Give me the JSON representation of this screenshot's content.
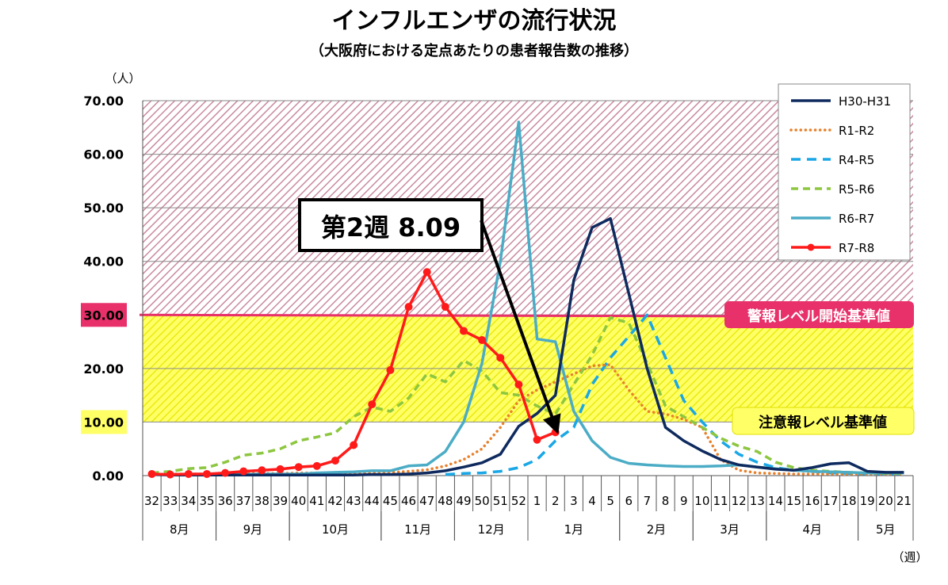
{
  "chart_data": {
    "type": "line",
    "title": "インフルエンザの流行状況",
    "subtitle": "（大阪府における定点あたりの患者報告数の推移）",
    "ylabel": "（人）",
    "xlabel": "（週）",
    "ylim": [
      0,
      70
    ],
    "yticks": [
      "0.00",
      "10.00",
      "20.00",
      "30.00",
      "40.00",
      "50.00",
      "60.00",
      "70.00"
    ],
    "categories": [
      "32",
      "33",
      "34",
      "35",
      "36",
      "37",
      "38",
      "39",
      "40",
      "41",
      "42",
      "43",
      "44",
      "45",
      "46",
      "47",
      "48",
      "49",
      "50",
      "51",
      "52",
      "1",
      "2",
      "3",
      "4",
      "5",
      "6",
      "7",
      "8",
      "9",
      "10",
      "11",
      "12",
      "13",
      "14",
      "15",
      "16",
      "17",
      "18",
      "19",
      "20",
      "21"
    ],
    "months": [
      {
        "label": "8月",
        "start": 0,
        "end": 4
      },
      {
        "label": "9月",
        "start": 4,
        "end": 8
      },
      {
        "label": "10月",
        "start": 8,
        "end": 13
      },
      {
        "label": "11月",
        "start": 13,
        "end": 17
      },
      {
        "label": "12月",
        "start": 17,
        "end": 21
      },
      {
        "label": "1月",
        "start": 21,
        "end": 26
      },
      {
        "label": "2月",
        "start": 26,
        "end": 30
      },
      {
        "label": "3月",
        "start": 30,
        "end": 34
      },
      {
        "label": "4月",
        "start": 34,
        "end": 39
      },
      {
        "label": "5月",
        "start": 39,
        "end": 42
      }
    ],
    "thresholds": [
      {
        "name": "警報レベル開始基準値",
        "value": 30,
        "label": "警報レベル開始基準値",
        "color": "#e8306a"
      },
      {
        "name": "注意報レベル基準値",
        "value": 10,
        "label": "注意報レベル基準値",
        "color": "#f5f53a"
      }
    ],
    "series": [
      {
        "name": "H30-H31",
        "color": "#0e2a5e",
        "style": "solid",
        "marker": false,
        "values": [
          0.2,
          0.1,
          0.1,
          0.1,
          0.1,
          0.1,
          0.1,
          0.1,
          0.1,
          0.1,
          0.1,
          0.1,
          0.2,
          0.2,
          0.3,
          0.5,
          0.9,
          1.6,
          2.4,
          4.0,
          9.2,
          11.6,
          15.0,
          36.5,
          46.3,
          48.0,
          34.0,
          20.0,
          9.0,
          6.5,
          4.6,
          3.0,
          2.0,
          1.6,
          1.2,
          1.0,
          1.5,
          2.2,
          2.4,
          0.8,
          0.6,
          0.6
        ]
      },
      {
        "name": "R1-R2",
        "color": "#e8802b",
        "style": "dotted",
        "marker": false,
        "values": [
          0.2,
          0.3,
          0.3,
          0.3,
          0.3,
          0.4,
          0.4,
          0.4,
          0.5,
          0.5,
          0.4,
          0.4,
          0.5,
          0.6,
          0.8,
          1.1,
          1.8,
          3.0,
          5.0,
          9.0,
          14.0,
          16.0,
          17.5,
          19.0,
          20.5,
          20.7,
          16.0,
          12.0,
          11.5,
          10.5,
          9.0,
          3.0,
          1.0,
          0.5,
          0.4,
          0.3,
          0.3,
          0.3,
          0.3,
          0.3,
          0.3,
          0.3
        ]
      },
      {
        "name": "R4-R5",
        "color": "#1aa7e6",
        "style": "dashed",
        "marker": false,
        "values": [
          null,
          null,
          null,
          null,
          null,
          null,
          null,
          null,
          null,
          null,
          null,
          null,
          null,
          null,
          null,
          null,
          0.2,
          0.4,
          0.5,
          0.8,
          1.5,
          3.0,
          6.5,
          9.0,
          17.0,
          22.0,
          26.0,
          30.0,
          22.0,
          14.0,
          10.0,
          6.5,
          4.0,
          2.5,
          1.5,
          1.0,
          0.8,
          0.5,
          0.4,
          0.3,
          0.3,
          0.3
        ]
      },
      {
        "name": "R5-R6",
        "color": "#8dc63f",
        "style": "dashed",
        "marker": false,
        "values": [
          0.5,
          0.8,
          1.3,
          1.5,
          2.5,
          3.8,
          4.2,
          5.0,
          6.5,
          7.2,
          8.0,
          11.0,
          12.8,
          12.0,
          14.5,
          19.0,
          17.5,
          21.5,
          19.5,
          15.5,
          15.0,
          13.0,
          11.5,
          17.0,
          22.5,
          29.5,
          28.5,
          21.0,
          13.0,
          11.0,
          9.0,
          7.0,
          5.5,
          4.5,
          2.5,
          1.5,
          1.0,
          0.8,
          0.6,
          0.5,
          0.4,
          0.4
        ]
      },
      {
        "name": "R6-R7",
        "color": "#4bacc6",
        "style": "solid",
        "marker": false,
        "values": [
          0.2,
          0.2,
          0.2,
          0.2,
          0.2,
          0.2,
          0.3,
          0.3,
          0.3,
          0.5,
          0.6,
          0.7,
          0.9,
          0.9,
          1.8,
          2.0,
          4.5,
          10.0,
          21.0,
          40.0,
          66.0,
          25.5,
          25.0,
          12.0,
          6.5,
          3.4,
          2.3,
          2.0,
          1.8,
          1.7,
          1.7,
          1.8,
          2.0,
          1.6,
          1.3,
          1.0,
          0.8,
          0.7,
          0.6,
          0.5,
          0.5,
          0.5
        ]
      },
      {
        "name": "R7-R8",
        "color": "#ff1a1a",
        "style": "solid",
        "marker": true,
        "values": [
          0.3,
          0.2,
          0.3,
          0.3,
          0.5,
          0.8,
          1.0,
          1.2,
          1.6,
          1.8,
          2.8,
          5.7,
          13.3,
          19.7,
          31.5,
          38.0,
          31.5,
          27.0,
          25.3,
          22.0,
          17.0,
          6.7,
          8.09,
          null,
          null,
          null,
          null,
          null,
          null,
          null,
          null,
          null,
          null,
          null,
          null,
          null,
          null,
          null,
          null,
          null,
          null,
          null
        ]
      }
    ],
    "annotation": {
      "text": "第2週 8.09",
      "points_to_category": "2",
      "points_to_value": 8.09
    }
  }
}
